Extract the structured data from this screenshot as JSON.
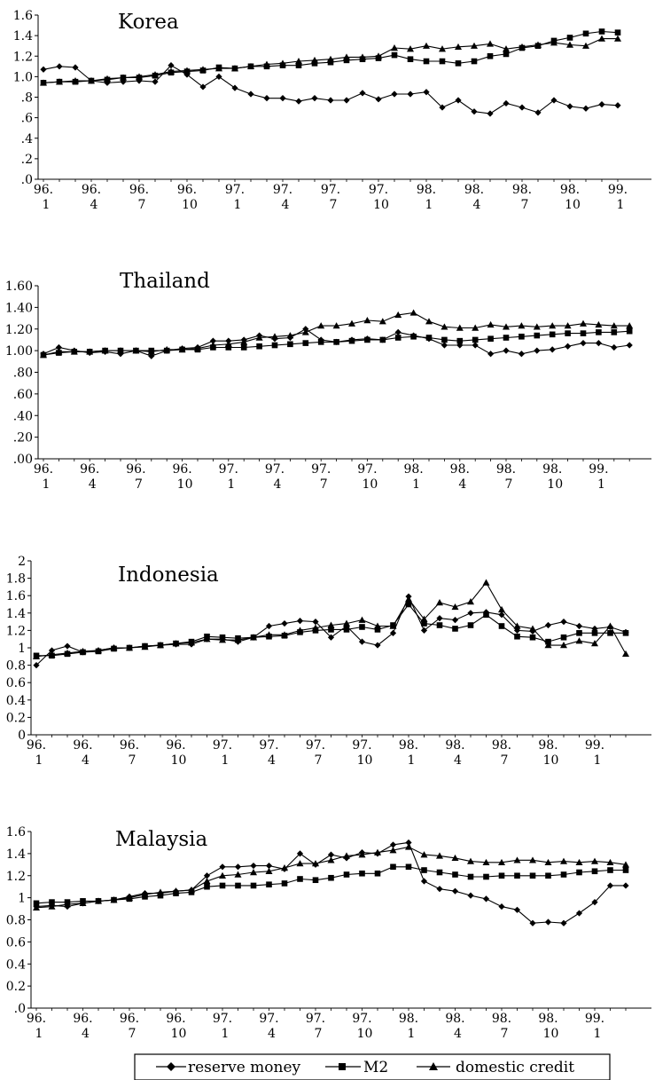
{
  "legend": {
    "items": [
      {
        "label": "reserve money",
        "marker": "diamond"
      },
      {
        "label": "M2",
        "marker": "square"
      },
      {
        "label": "domestic credit",
        "marker": "triangle"
      }
    ]
  },
  "chart_data": [
    {
      "type": "line",
      "title": "Korea",
      "ylim": [
        0,
        1.6
      ],
      "yticks": [
        0,
        0.2,
        0.4,
        0.6,
        0.8,
        1.0,
        1.2,
        1.4,
        1.6
      ],
      "ytick_labels": [
        ".0",
        ".2",
        ".4",
        ".6",
        ".8",
        "1.0",
        "1.2",
        "1.4",
        "1.6"
      ],
      "xtick_labels": [
        [
          "96.",
          "1"
        ],
        [
          "96.",
          "4"
        ],
        [
          "96.",
          "7"
        ],
        [
          "96.",
          "10"
        ],
        [
          "97.",
          "1"
        ],
        [
          "97.",
          "4"
        ],
        [
          "97.",
          "7"
        ],
        [
          "97.",
          "10"
        ],
        [
          "98.",
          "1"
        ],
        [
          "98.",
          "4"
        ],
        [
          "98.",
          "7"
        ],
        [
          "98.",
          "10"
        ],
        [
          "99.",
          "1"
        ]
      ],
      "series": [
        {
          "name": "reserve money",
          "marker": "diamond",
          "values": [
            1.07,
            1.1,
            1.09,
            0.96,
            0.94,
            0.95,
            0.96,
            0.95,
            1.11,
            1.02,
            0.9,
            1.0,
            0.89,
            0.83,
            0.79,
            0.79,
            0.76,
            0.79,
            0.77,
            0.77,
            0.84,
            0.78,
            0.83,
            0.83,
            0.85,
            0.7,
            0.77,
            0.66,
            0.64,
            0.74,
            0.7,
            0.65,
            0.77,
            0.71,
            0.69,
            0.73,
            0.72
          ]
        },
        {
          "name": "M2",
          "marker": "square",
          "values": [
            0.94,
            0.95,
            0.95,
            0.96,
            0.97,
            0.99,
            0.99,
            1.01,
            1.04,
            1.05,
            1.06,
            1.09,
            1.08,
            1.1,
            1.1,
            1.11,
            1.11,
            1.13,
            1.14,
            1.16,
            1.17,
            1.18,
            1.21,
            1.17,
            1.15,
            1.15,
            1.13,
            1.15,
            1.2,
            1.22,
            1.28,
            1.3,
            1.35,
            1.38,
            1.42,
            1.44,
            1.43
          ]
        },
        {
          "name": "domestic credit",
          "marker": "triangle",
          "values": [
            0.94,
            0.95,
            0.96,
            0.96,
            0.98,
            0.99,
            1.0,
            1.02,
            1.05,
            1.06,
            1.07,
            1.08,
            1.08,
            1.1,
            1.12,
            1.13,
            1.15,
            1.16,
            1.17,
            1.19,
            1.19,
            1.2,
            1.28,
            1.27,
            1.3,
            1.27,
            1.29,
            1.3,
            1.32,
            1.27,
            1.29,
            1.31,
            1.33,
            1.31,
            1.3,
            1.37,
            1.37
          ]
        }
      ]
    },
    {
      "type": "line",
      "title": "Thailand",
      "ylim": [
        0,
        1.6
      ],
      "yticks": [
        0,
        0.2,
        0.4,
        0.6,
        0.8,
        1.0,
        1.2,
        1.4,
        1.6
      ],
      "ytick_labels": [
        ".00",
        ".20",
        ".40",
        ".60",
        ".80",
        "1.00",
        "1.20",
        "1.40",
        "1.60"
      ],
      "xtick_labels": [
        [
          "96.",
          "1"
        ],
        [
          "96.",
          "4"
        ],
        [
          "96.",
          "7"
        ],
        [
          "96.",
          "10"
        ],
        [
          "97.",
          "1"
        ],
        [
          "97.",
          "4"
        ],
        [
          "97.",
          "7"
        ],
        [
          "97.",
          "10"
        ],
        [
          "98.",
          "1"
        ],
        [
          "98.",
          "4"
        ],
        [
          "98.",
          "7"
        ],
        [
          "98.",
          "10"
        ],
        [
          "99.",
          "1"
        ]
      ],
      "series": [
        {
          "name": "reserve money",
          "marker": "diamond",
          "values": [
            0.97,
            1.03,
            1.0,
            0.98,
            0.99,
            0.97,
            1.0,
            0.95,
            1.0,
            1.02,
            1.03,
            1.09,
            1.09,
            1.1,
            1.14,
            1.11,
            1.12,
            1.2,
            1.1,
            1.08,
            1.1,
            1.11,
            1.1,
            1.17,
            1.14,
            1.11,
            1.05,
            1.05,
            1.05,
            0.97,
            1.0,
            0.97,
            1.0,
            1.01,
            1.04,
            1.07,
            1.07,
            1.03,
            1.05
          ]
        },
        {
          "name": "M2",
          "marker": "square",
          "values": [
            0.96,
            0.98,
            0.99,
            0.99,
            1.0,
            1.0,
            1.0,
            1.0,
            1.0,
            1.01,
            1.01,
            1.03,
            1.03,
            1.03,
            1.04,
            1.05,
            1.06,
            1.07,
            1.08,
            1.08,
            1.09,
            1.1,
            1.1,
            1.12,
            1.13,
            1.12,
            1.1,
            1.09,
            1.1,
            1.11,
            1.12,
            1.13,
            1.14,
            1.15,
            1.16,
            1.16,
            1.17,
            1.17,
            1.18
          ]
        },
        {
          "name": "domestic credit",
          "marker": "triangle",
          "values": [
            0.96,
            0.99,
            0.99,
            0.99,
            1.0,
            1.0,
            1.0,
            0.99,
            1.01,
            1.01,
            1.02,
            1.05,
            1.06,
            1.08,
            1.12,
            1.13,
            1.14,
            1.17,
            1.23,
            1.23,
            1.25,
            1.28,
            1.27,
            1.33,
            1.35,
            1.27,
            1.22,
            1.21,
            1.21,
            1.24,
            1.22,
            1.23,
            1.22,
            1.23,
            1.23,
            1.25,
            1.24,
            1.23,
            1.23
          ]
        }
      ]
    },
    {
      "type": "line",
      "title": "Indonesia",
      "ylim": [
        0,
        2
      ],
      "yticks": [
        0,
        0.2,
        0.4,
        0.6,
        0.8,
        1,
        1.2,
        1.4,
        1.6,
        1.8,
        2
      ],
      "ytick_labels": [
        "0",
        "0.2",
        "0.4",
        "0.6",
        "0.8",
        "1",
        "1.2",
        "1.4",
        "1.6",
        "1.8",
        "2"
      ],
      "xtick_labels": [
        [
          "96.",
          "1"
        ],
        [
          "96.",
          "4"
        ],
        [
          "96.",
          "7"
        ],
        [
          "96.",
          "10"
        ],
        [
          "97.",
          "1"
        ],
        [
          "97.",
          "4"
        ],
        [
          "97.",
          "7"
        ],
        [
          "97.",
          "10"
        ],
        [
          "98.",
          "1"
        ],
        [
          "98.",
          "4"
        ],
        [
          "98.",
          "7"
        ],
        [
          "98.",
          "10"
        ],
        [
          "99.",
          "1"
        ]
      ],
      "series": [
        {
          "name": "reserve money",
          "marker": "diamond",
          "values": [
            0.8,
            0.97,
            1.02,
            0.95,
            0.97,
            1.0,
            1.0,
            1.02,
            1.03,
            1.04,
            1.04,
            1.1,
            1.1,
            1.07,
            1.12,
            1.25,
            1.28,
            1.31,
            1.3,
            1.12,
            1.25,
            1.07,
            1.03,
            1.17,
            1.59,
            1.2,
            1.34,
            1.32,
            1.4,
            1.41,
            1.38,
            1.2,
            1.19,
            1.26,
            1.3,
            1.25,
            1.22,
            1.24,
            1.18
          ]
        },
        {
          "name": "M2",
          "marker": "square",
          "values": [
            0.91,
            0.91,
            0.93,
            0.95,
            0.96,
            0.99,
            1.0,
            1.02,
            1.03,
            1.05,
            1.07,
            1.13,
            1.12,
            1.11,
            1.12,
            1.13,
            1.14,
            1.18,
            1.2,
            1.21,
            1.21,
            1.24,
            1.21,
            1.26,
            1.5,
            1.28,
            1.26,
            1.22,
            1.26,
            1.38,
            1.25,
            1.13,
            1.12,
            1.07,
            1.12,
            1.17,
            1.17,
            1.17,
            1.17
          ]
        },
        {
          "name": "domestic credit",
          "marker": "triangle",
          "values": [
            0.9,
            0.92,
            0.94,
            0.96,
            0.97,
            1.0,
            1.0,
            1.01,
            1.03,
            1.05,
            1.06,
            1.1,
            1.09,
            1.09,
            1.12,
            1.15,
            1.15,
            1.2,
            1.23,
            1.26,
            1.28,
            1.32,
            1.25,
            1.25,
            1.56,
            1.33,
            1.52,
            1.47,
            1.53,
            1.75,
            1.44,
            1.25,
            1.22,
            1.03,
            1.03,
            1.08,
            1.05,
            1.25,
            0.93
          ]
        }
      ]
    },
    {
      "type": "line",
      "title": "Malaysia",
      "ylim": [
        0,
        1.6
      ],
      "yticks": [
        0,
        0.2,
        0.4,
        0.6,
        0.8,
        1,
        1.2,
        1.4,
        1.6
      ],
      "ytick_labels": [
        ".0",
        "0.2",
        "0.4",
        "0.6",
        "0.8",
        "1",
        "1.2",
        "1.4",
        "1.6"
      ],
      "xtick_labels": [
        [
          "96.",
          "1"
        ],
        [
          "96.",
          "4"
        ],
        [
          "96.",
          "7"
        ],
        [
          "96.",
          "10"
        ],
        [
          "97.",
          "1"
        ],
        [
          "97.",
          "4"
        ],
        [
          "97.",
          "7"
        ],
        [
          "97.",
          "10"
        ],
        [
          "98.",
          "1"
        ],
        [
          "98.",
          "4"
        ],
        [
          "98.",
          "7"
        ],
        [
          "98.",
          "10"
        ],
        [
          "99.",
          "1"
        ]
      ],
      "series": [
        {
          "name": "reserve money",
          "marker": "diamond",
          "values": [
            0.92,
            0.93,
            0.92,
            0.95,
            0.97,
            0.98,
            1.01,
            1.04,
            1.04,
            1.06,
            1.07,
            1.2,
            1.28,
            1.28,
            1.29,
            1.29,
            1.26,
            1.4,
            1.3,
            1.39,
            1.36,
            1.41,
            1.4,
            1.48,
            1.5,
            1.15,
            1.08,
            1.06,
            1.02,
            0.99,
            0.92,
            0.89,
            0.77,
            0.78,
            0.77,
            0.86,
            0.96,
            1.11,
            1.11
          ]
        },
        {
          "name": "M2",
          "marker": "square",
          "values": [
            0.95,
            0.96,
            0.96,
            0.97,
            0.97,
            0.98,
            0.99,
            1.01,
            1.02,
            1.04,
            1.05,
            1.1,
            1.11,
            1.11,
            1.11,
            1.12,
            1.13,
            1.17,
            1.16,
            1.18,
            1.21,
            1.22,
            1.22,
            1.28,
            1.28,
            1.25,
            1.23,
            1.21,
            1.19,
            1.19,
            1.2,
            1.2,
            1.2,
            1.2,
            1.21,
            1.23,
            1.24,
            1.25,
            1.25
          ]
        },
        {
          "name": "domestic credit",
          "marker": "triangle",
          "values": [
            0.91,
            0.92,
            0.94,
            0.95,
            0.97,
            0.98,
            1.0,
            1.03,
            1.05,
            1.06,
            1.07,
            1.15,
            1.2,
            1.21,
            1.23,
            1.24,
            1.27,
            1.31,
            1.31,
            1.34,
            1.38,
            1.39,
            1.41,
            1.43,
            1.46,
            1.39,
            1.38,
            1.36,
            1.33,
            1.32,
            1.32,
            1.34,
            1.34,
            1.32,
            1.33,
            1.32,
            1.33,
            1.32,
            1.3
          ]
        }
      ]
    }
  ]
}
